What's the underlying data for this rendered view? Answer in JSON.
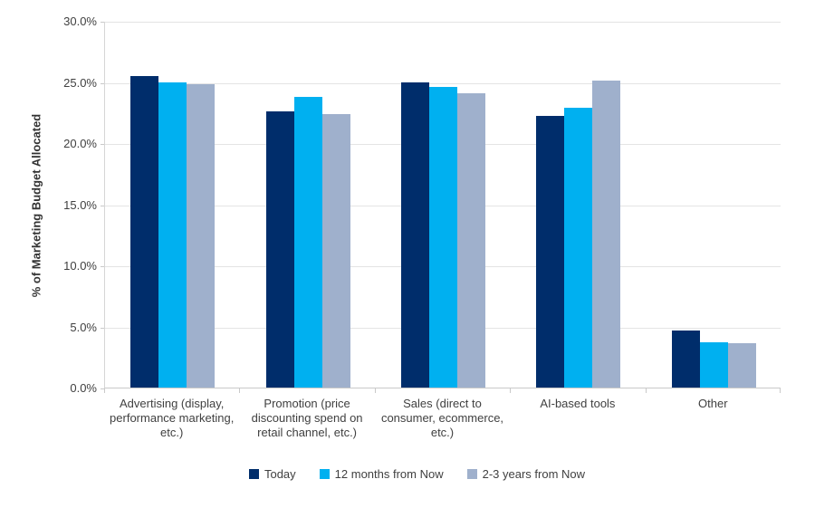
{
  "chart_data": {
    "type": "bar",
    "title": "",
    "xlabel": "",
    "ylabel": "% of Marketing Budget Allocated",
    "ylim": [
      0,
      30
    ],
    "ytick_step": 5,
    "yticks": [
      "0.0%",
      "5.0%",
      "10.0%",
      "15.0%",
      "20.0%",
      "25.0%",
      "30.0%"
    ],
    "grid": true,
    "legend_position": "bottom",
    "categories": [
      "Advertising (display, performance marketing, etc.)",
      "Promotion (price discounting spend on retail channel, etc.)",
      "Sales (direct to consumer, ecommerce, etc.)",
      "AI-based tools",
      "Other"
    ],
    "series": [
      {
        "name": "Today",
        "color": "#002D6B",
        "values": [
          25.5,
          22.6,
          25.0,
          22.2,
          4.7
        ]
      },
      {
        "name": "12 months from Now",
        "color": "#00B0F0",
        "values": [
          25.0,
          23.8,
          24.6,
          22.9,
          3.7
        ]
      },
      {
        "name": "2-3 years from Now",
        "color": "#9FB0CC",
        "values": [
          24.8,
          22.4,
          24.1,
          25.1,
          3.6
        ]
      }
    ],
    "colors": {
      "gridline": "#e4e4e4",
      "axis": "#c9c9c9",
      "text": "#404040"
    }
  }
}
